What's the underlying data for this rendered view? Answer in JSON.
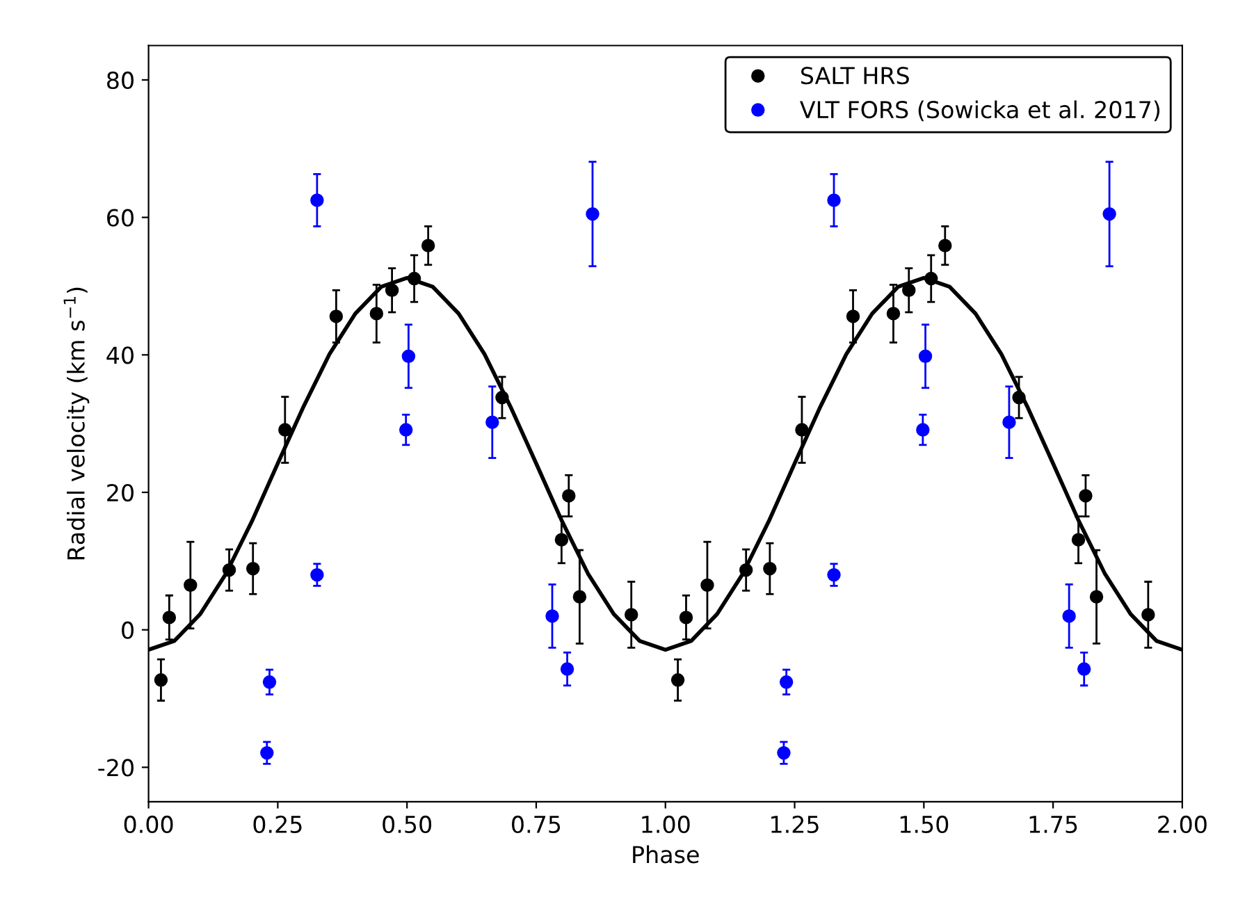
{
  "chart_data": {
    "type": "scatter",
    "xlabel": "Phase",
    "ylabel": "Radial velocity (km s$^{−1}$)",
    "xlim": [
      0,
      2
    ],
    "ylim": [
      -25,
      85
    ],
    "xticks": [
      {
        "value": 0,
        "label": "0.00"
      },
      {
        "value": 0.25,
        "label": "0.25"
      },
      {
        "value": 0.5,
        "label": "0.50"
      },
      {
        "value": 0.75,
        "label": "0.75"
      },
      {
        "value": 1,
        "label": "1.00"
      },
      {
        "value": 1.25,
        "label": "1.25"
      },
      {
        "value": 1.5,
        "label": "1.50"
      },
      {
        "value": 1.75,
        "label": "1.75"
      },
      {
        "value": 2,
        "label": "2.00"
      }
    ],
    "yticks": [
      -20,
      0,
      20,
      40,
      60,
      80
    ],
    "grid": false,
    "legend": "top right",
    "marker": "circle",
    "series": [
      {
        "name": "SALT HRS",
        "color": "#000000",
        "x": [
          0.024,
          0.04,
          0.081,
          0.156,
          0.202,
          0.264,
          0.363,
          0.441,
          0.471,
          0.514,
          0.541,
          0.684,
          0.799,
          0.813,
          0.834,
          0.934,
          1.024,
          1.04,
          1.081,
          1.156,
          1.202,
          1.264,
          1.363,
          1.441,
          1.471,
          1.514,
          1.541,
          1.684,
          1.799,
          1.813,
          1.834,
          1.934
        ],
        "values": [
          -7.3,
          1.8,
          6.5,
          8.7,
          8.9,
          29.1,
          45.6,
          46.0,
          49.4,
          51.1,
          55.9,
          33.8,
          13.1,
          19.5,
          4.8,
          2.2,
          -7.3,
          1.8,
          6.5,
          8.7,
          8.9,
          29.1,
          45.6,
          46.0,
          49.4,
          51.1,
          55.9,
          33.8,
          13.1,
          19.5,
          4.8,
          2.2
        ],
        "errors": [
          3.0,
          3.2,
          6.3,
          3.0,
          3.7,
          4.8,
          3.8,
          4.2,
          3.2,
          3.4,
          2.8,
          3.0,
          3.4,
          3.0,
          6.8,
          4.8,
          3.0,
          3.2,
          6.3,
          3.0,
          3.7,
          4.8,
          3.8,
          4.2,
          3.2,
          3.4,
          2.8,
          3.0,
          3.4,
          3.0,
          6.8,
          4.8
        ]
      },
      {
        "name": "VLT FORS (Sowicka et al. 2017)",
        "color": "#0000ff",
        "x": [
          0.229,
          0.234,
          0.326,
          0.326,
          0.498,
          0.503,
          0.665,
          0.781,
          0.81,
          0.859,
          1.229,
          1.234,
          1.326,
          1.326,
          1.498,
          1.503,
          1.665,
          1.781,
          1.81,
          1.859
        ],
        "values": [
          -17.9,
          -7.6,
          8.0,
          62.5,
          29.1,
          39.8,
          30.2,
          2.0,
          -5.7,
          60.5,
          -17.9,
          -7.6,
          8.0,
          62.5,
          29.1,
          39.8,
          30.2,
          2.0,
          -5.7,
          60.5
        ],
        "errors": [
          1.6,
          1.8,
          1.6,
          3.8,
          2.2,
          4.6,
          5.2,
          4.6,
          2.4,
          7.6,
          1.6,
          1.8,
          1.6,
          3.8,
          2.2,
          4.6,
          5.2,
          4.6,
          2.4,
          7.6
        ]
      },
      {
        "color": "#000000",
        "type": "line",
        "marker": "none",
        "line_style": "solid",
        "x": [
          0,
          0.05,
          0.1,
          0.15,
          0.2,
          0.25,
          0.3,
          0.35,
          0.4,
          0.45,
          0.5,
          0.55,
          0.6,
          0.65,
          0.7,
          0.75,
          0.8,
          0.85,
          0.9,
          0.95,
          1.0,
          1.05,
          1.1,
          1.15,
          1.2,
          1.25,
          1.3,
          1.35,
          1.4,
          1.45,
          1.5,
          1.55,
          1.6,
          1.65,
          1.7,
          1.75,
          1.8,
          1.85,
          1.9,
          1.95,
          2.0
        ],
        "values": [
          -2.9,
          -1.6,
          2.3,
          8.2,
          15.8,
          24.2,
          32.5,
          40.1,
          46.0,
          49.9,
          51.2,
          49.9,
          46.0,
          40.1,
          32.5,
          24.2,
          15.8,
          8.2,
          2.3,
          -1.6,
          -2.9,
          -1.6,
          2.3,
          8.2,
          15.8,
          24.2,
          32.5,
          40.1,
          46.0,
          49.9,
          51.2,
          49.9,
          46.0,
          40.1,
          32.5,
          24.2,
          15.8,
          8.2,
          2.3,
          -1.6,
          -2.9
        ]
      }
    ]
  }
}
